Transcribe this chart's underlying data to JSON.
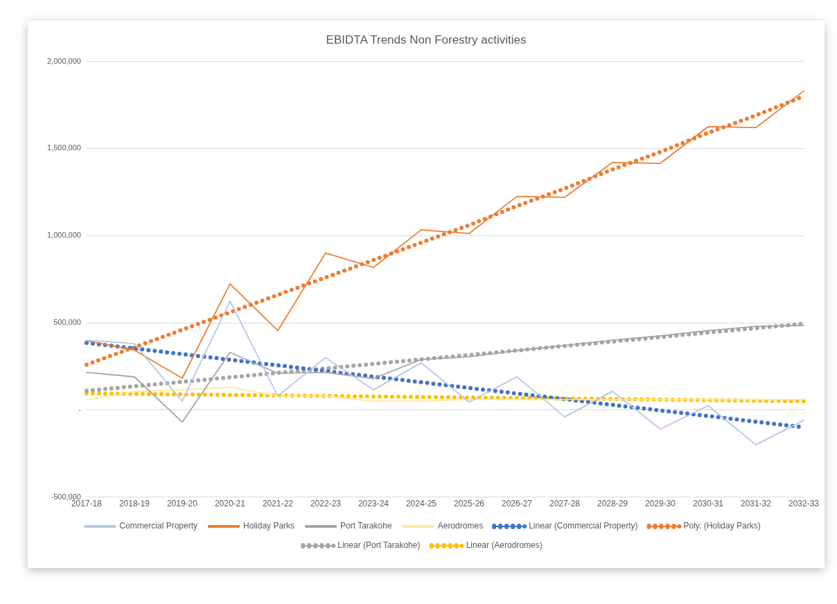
{
  "chart_data": {
    "type": "line",
    "title": "EBIDTA Trends Non Forestry activities",
    "categories": [
      "2017-18",
      "2018-19",
      "2019-20",
      "2020-21",
      "2021-22",
      "2022-23",
      "2023-24",
      "2024-25",
      "2025-26",
      "2026-27",
      "2027-28",
      "2028-29",
      "2029-30",
      "2030-31",
      "2031-32",
      "2032-33"
    ],
    "series": [
      {
        "name": "Commercial Property",
        "color": "#b4c7e7",
        "line_style": "solid",
        "values": [
          400000,
          380000,
          50000,
          625000,
          80000,
          300000,
          115000,
          270000,
          45000,
          190000,
          -40000,
          107000,
          -110000,
          25000,
          -200000,
          -60000
        ]
      },
      {
        "name": "Holiday Parks",
        "color": "#ed7d31",
        "line_style": "solid",
        "values": [
          397000,
          343000,
          182000,
          723000,
          455000,
          900000,
          818000,
          1033000,
          1012000,
          1225000,
          1220000,
          1420000,
          1415000,
          1625000,
          1620000,
          1830000
        ]
      },
      {
        "name": "Port Tarakohe",
        "color": "#a5a5a5",
        "line_style": "solid",
        "values": [
          215000,
          190000,
          -70000,
          330000,
          210000,
          215000,
          180000,
          290000,
          305000,
          340000,
          370000,
          400000,
          425000,
          455000,
          480000,
          485000
        ]
      },
      {
        "name": "Aerodromes",
        "color": "#ffe699",
        "line_style": "solid",
        "values": [
          57000,
          105000,
          115000,
          130000,
          80000,
          80000,
          50000,
          50000,
          60000,
          60000,
          60000,
          58000,
          58000,
          58000,
          58000,
          60000
        ]
      },
      {
        "name": "Linear (Commercial Property)",
        "color": "#4472c4",
        "line_style": "dotted",
        "values": [
          385000,
          353000,
          320000,
          288000,
          256000,
          223000,
          191000,
          159000,
          126000,
          94000,
          62000,
          29000,
          -3000,
          -35000,
          -68000,
          -100000
        ]
      },
      {
        "name": "Poly. (Holiday Parks)",
        "color": "#ed7d31",
        "line_style": "dotted",
        "values": [
          260000,
          360000,
          460000,
          560000,
          660000,
          760000,
          860000,
          960000,
          1060000,
          1170000,
          1270000,
          1380000,
          1480000,
          1590000,
          1690000,
          1800000
        ]
      },
      {
        "name": "Linear (Port Tarakohe)",
        "color": "#a5a5a5",
        "line_style": "dotted",
        "values": [
          110000,
          136000,
          161000,
          187000,
          213000,
          238000,
          264000,
          290000,
          315000,
          341000,
          367000,
          392000,
          418000,
          444000,
          469000,
          495000
        ]
      },
      {
        "name": "Linear (Aerodromes)",
        "color": "#ffc000",
        "line_style": "dotted",
        "values": [
          95000,
          92000,
          89000,
          86000,
          83000,
          80000,
          77000,
          74000,
          71000,
          68000,
          65000,
          62000,
          59000,
          56000,
          53000,
          50000
        ]
      }
    ],
    "ylim": [
      -500000,
      2000000
    ],
    "yticks": [
      {
        "value": -500000,
        "label": "-500,000"
      },
      {
        "value": 0,
        "label": "-"
      },
      {
        "value": 500000,
        "label": "500,000"
      },
      {
        "value": 1000000,
        "label": "1,000,000"
      },
      {
        "value": 1500000,
        "label": "1,500,000"
      },
      {
        "value": 2000000,
        "label": "2,000,000"
      }
    ],
    "grid": "y",
    "legend": "bottom",
    "marker": "none"
  }
}
